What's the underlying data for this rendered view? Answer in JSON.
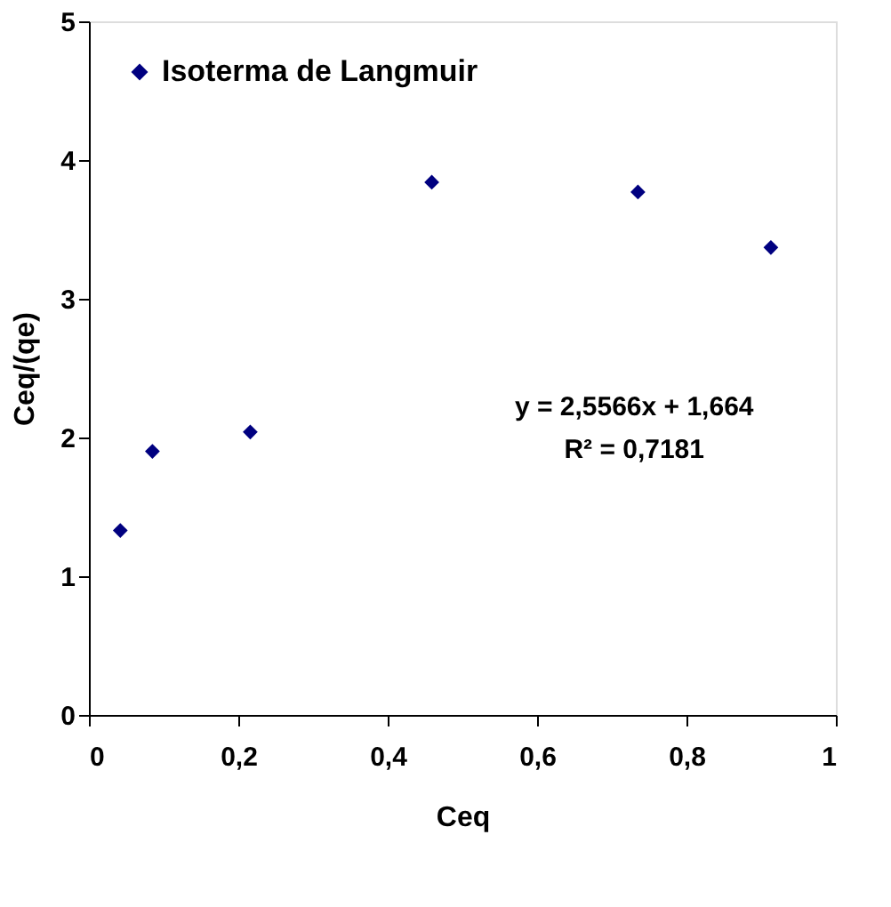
{
  "chart_data": {
    "type": "scatter",
    "xlabel": "Ceq",
    "ylabel": "Ceq/(qe)",
    "x": [
      0.042,
      0.085,
      0.216,
      0.459,
      0.735,
      0.913
    ],
    "series": [
      {
        "name": "Isoterma de Langmuir",
        "color": "#000080",
        "values": [
          1.33,
          1.9,
          2.04,
          3.84,
          3.77,
          3.37
        ]
      }
    ],
    "xlim": [
      0,
      1
    ],
    "ylim": [
      0,
      5
    ],
    "xticks": [
      0,
      {
        "value": 0.2,
        "label": "0,2"
      },
      {
        "value": 0.4,
        "label": "0,4"
      },
      {
        "value": 0.6,
        "label": "0,6"
      },
      {
        "value": 0.8,
        "label": "0,8"
      },
      1
    ],
    "yticks": [
      0,
      1,
      2,
      3,
      4,
      5
    ],
    "annotations": [
      "y = 2,5566x + 1,664",
      "R² = 0,7181"
    ],
    "marker": "diamond",
    "legend": "top left",
    "grid": false
  }
}
